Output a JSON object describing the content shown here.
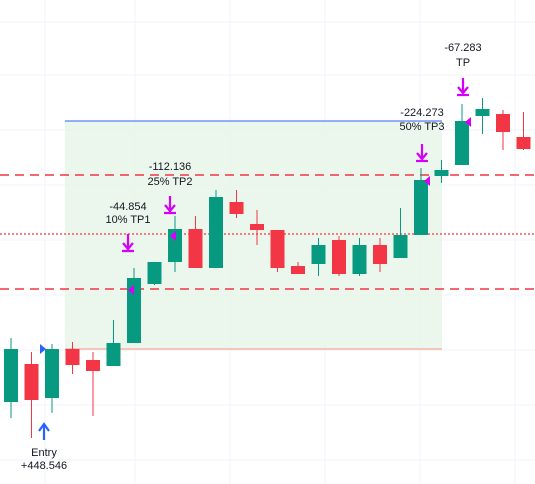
{
  "colors": {
    "up": "#089981",
    "down": "#f23645",
    "zone_fill": "#e8f5e9",
    "zone_top_line": "#2962ff",
    "zone_bottom_line": "#f5b7a4",
    "dashed_level": "#f23645",
    "entry_level": "#f23645",
    "entry_arrow": "#2962ff",
    "exit_arrow": "#d500f9",
    "grid": "#f0f3fa"
  },
  "chart_data": {
    "type": "candlestick",
    "candles": [
      {
        "o": 0.0,
        "h": 0.0,
        "l": 0.0,
        "c": 0.0
      },
      {
        "o": 0.0,
        "h": 0.0,
        "l": 0.0,
        "c": 0.0
      },
      {
        "o": 0.0,
        "h": 0.0,
        "l": 0.0,
        "c": 0.0
      },
      {
        "o": 0.0,
        "h": 0.0,
        "l": 0.0,
        "c": 0.0
      },
      {
        "o": 0.0,
        "h": 0.0,
        "l": 0.0,
        "c": 0.0
      },
      {
        "o": 0.0,
        "h": 0.0,
        "l": 0.0,
        "c": 0.0
      },
      {
        "o": 0.0,
        "h": 0.0,
        "l": 0.0,
        "c": 0.0
      },
      {
        "o": 0.0,
        "h": 0.0,
        "l": 0.0,
        "c": 0.0
      },
      {
        "o": 0.0,
        "h": 0.0,
        "l": 0.0,
        "c": 0.0
      },
      {
        "o": 0.0,
        "h": 0.0,
        "l": 0.0,
        "c": 0.0
      },
      {
        "o": 0.0,
        "h": 0.0,
        "l": 0.0,
        "c": 0.0
      },
      {
        "o": 0.0,
        "h": 0.0,
        "l": 0.0,
        "c": 0.0
      },
      {
        "o": 0.0,
        "h": 0.0,
        "l": 0.0,
        "c": 0.0
      },
      {
        "o": 0.0,
        "h": 0.0,
        "l": 0.0,
        "c": 0.0
      },
      {
        "o": 0.0,
        "h": 0.0,
        "l": 0.0,
        "c": 0.0
      },
      {
        "o": 0.0,
        "h": 0.0,
        "l": 0.0,
        "c": 0.0
      },
      {
        "o": 0.0,
        "h": 0.0,
        "l": 0.0,
        "c": 0.0
      },
      {
        "o": 0.0,
        "h": 0.0,
        "l": 0.0,
        "c": 0.0
      },
      {
        "o": 0.0,
        "h": 0.0,
        "l": 0.0,
        "c": 0.0
      },
      {
        "o": 0.0,
        "h": 0.0,
        "l": 0.0,
        "c": 0.0
      },
      {
        "o": 0.0,
        "h": 0.0,
        "l": 0.0,
        "c": 0.0
      },
      {
        "o": 0.0,
        "h": 0.0,
        "l": 0.0,
        "c": 0.0
      },
      {
        "o": 0.0,
        "h": 0.0,
        "l": 0.0,
        "c": 0.0
      },
      {
        "o": 0.0,
        "h": 0.0,
        "l": 0.0,
        "c": 0.0
      },
      {
        "o": 0.0,
        "h": 0.0,
        "l": 0.0,
        "c": 0.0
      },
      {
        "o": 0.0,
        "h": 0.0,
        "l": 0.0,
        "c": 0.0
      }
    ],
    "levels": {
      "take_profit_zone_top": 0.0,
      "stop_zone_bottom": 0.0,
      "tp1_line": 0.0,
      "entry_line": 0.0,
      "tp3_line": 0.0
    },
    "annotations": [
      {
        "candle": 1,
        "kind": "entry",
        "line1": "Entry",
        "line2": "+448.546"
      },
      {
        "candle": 5,
        "kind": "exit",
        "line1": "-44.854",
        "line2": "10% TP1"
      },
      {
        "candle": 7,
        "kind": "exit",
        "line1": "-112.136",
        "line2": "25% TP2"
      },
      {
        "candle": 19,
        "kind": "exit",
        "line1": "-224.273",
        "line2": "50% TP3"
      },
      {
        "candle": 21,
        "kind": "exit",
        "line1": "-67.283",
        "line2": "TP"
      }
    ]
  }
}
